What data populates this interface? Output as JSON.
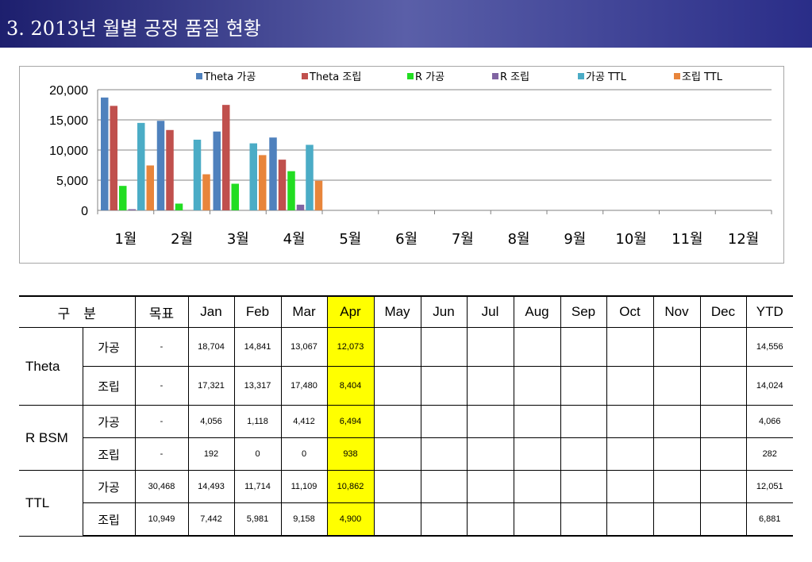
{
  "header": {
    "title": "3. 2013년 월별 공정 품질 현황"
  },
  "chart_data": {
    "type": "bar",
    "categories": [
      "1월",
      "2월",
      "3월",
      "4월",
      "5월",
      "6월",
      "7월",
      "8월",
      "9월",
      "10월",
      "11월",
      "12월"
    ],
    "series": [
      {
        "name": "Theta 가공",
        "color": "#4f81bd",
        "values": [
          18704,
          14841,
          13067,
          12073,
          null,
          null,
          null,
          null,
          null,
          null,
          null,
          null
        ]
      },
      {
        "name": "Theta 조립",
        "color": "#c0504d",
        "values": [
          17321,
          13317,
          17480,
          8404,
          null,
          null,
          null,
          null,
          null,
          null,
          null,
          null
        ]
      },
      {
        "name": "R 가공",
        "color": "#22dd22",
        "values": [
          4056,
          1118,
          4412,
          6494,
          null,
          null,
          null,
          null,
          null,
          null,
          null,
          null
        ]
      },
      {
        "name": "R 조립",
        "color": "#8064a2",
        "values": [
          192,
          0,
          0,
          938,
          null,
          null,
          null,
          null,
          null,
          null,
          null,
          null
        ]
      },
      {
        "name": "가공 TTL",
        "color": "#4bacc6",
        "values": [
          14493,
          11714,
          11109,
          10862,
          null,
          null,
          null,
          null,
          null,
          null,
          null,
          null
        ]
      },
      {
        "name": "조립 TTL",
        "color": "#e8853b",
        "values": [
          7442,
          5981,
          9158,
          4900,
          null,
          null,
          null,
          null,
          null,
          null,
          null,
          null
        ]
      }
    ],
    "ylim": [
      0,
      20000
    ],
    "yticks": [
      "0",
      "5,000",
      "10,000",
      "15,000",
      "20,000"
    ],
    "legend": "top",
    "grid": true
  },
  "table": {
    "headers": [
      "구　분",
      "목표",
      "Jan",
      "Feb",
      "Mar",
      "Apr",
      "May",
      "Jun",
      "Jul",
      "Aug",
      "Sep",
      "Oct",
      "Nov",
      "Dec",
      "YTD"
    ],
    "highlight_col": "Apr",
    "groups": [
      {
        "name": "Theta",
        "rows": [
          {
            "sub": "가공",
            "values": [
              "-",
              "18,704",
              "14,841",
              "13,067",
              "12,073",
              "",
              "",
              "",
              "",
              "",
              "",
              "",
              "",
              "14,556"
            ]
          },
          {
            "sub": "조립",
            "values": [
              "-",
              "17,321",
              "13,317",
              "17,480",
              "8,404",
              "",
              "",
              "",
              "",
              "",
              "",
              "",
              "",
              "14,024"
            ]
          }
        ]
      },
      {
        "name": "R BSM",
        "rows": [
          {
            "sub": "가공",
            "values": [
              "-",
              "4,056",
              "1,118",
              "4,412",
              "6,494",
              "",
              "",
              "",
              "",
              "",
              "",
              "",
              "",
              "4,066"
            ]
          },
          {
            "sub": "조립",
            "values": [
              "-",
              "192",
              "0",
              "0",
              "938",
              "",
              "",
              "",
              "",
              "",
              "",
              "",
              "",
              "282"
            ]
          }
        ]
      },
      {
        "name": "TTL",
        "rows": [
          {
            "sub": "가공",
            "values": [
              "30,468",
              "14,493",
              "11,714",
              "11,109",
              "10,862",
              "",
              "",
              "",
              "",
              "",
              "",
              "",
              "",
              "12,051"
            ]
          },
          {
            "sub": "조립",
            "values": [
              "10,949",
              "7,442",
              "5,981",
              "9,158",
              "4,900",
              "",
              "",
              "",
              "",
              "",
              "",
              "",
              "",
              "6,881"
            ]
          }
        ]
      }
    ]
  }
}
